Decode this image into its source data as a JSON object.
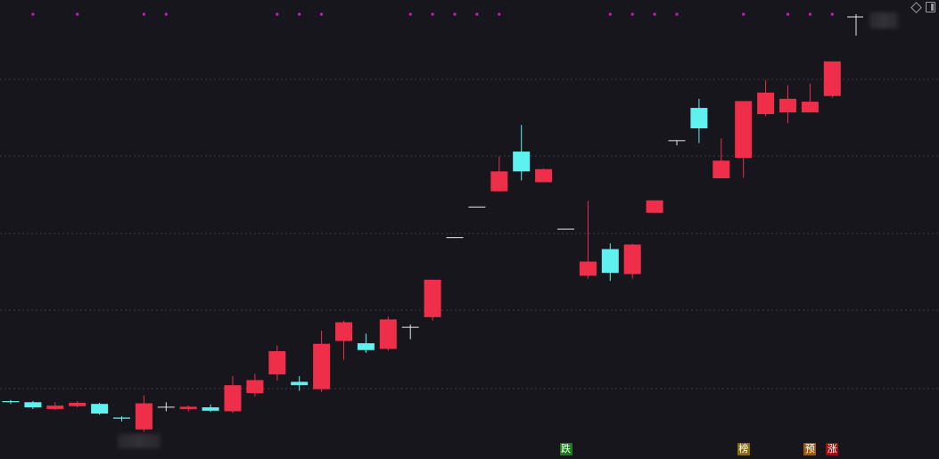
{
  "colors": {
    "background": "#17161d",
    "up": "#ef2f4a",
    "down": "#5ff0f0",
    "flat": "#e6e6e6",
    "grid": "#3a3a44",
    "dot": "#c020c0"
  },
  "markers": [
    {
      "label": "跌",
      "bg": "#1f7a1f",
      "fg": "#ffffff",
      "index": 25
    },
    {
      "label": "榜",
      "bg": "#8a6a10",
      "fg": "#ffffff",
      "index": 33
    },
    {
      "label": "预",
      "bg": "#a05a10",
      "fg": "#ffffff",
      "index": 36
    },
    {
      "label": "涨",
      "bg": "#9a1010",
      "fg": "#ffffff",
      "index": 37
    }
  ],
  "chart_data": {
    "type": "candlestick",
    "grid": true,
    "top_dots_at_indices": [
      1,
      3,
      6,
      7,
      12,
      13,
      14,
      18,
      19,
      20,
      21,
      22,
      27,
      28,
      29,
      30,
      33,
      35,
      36,
      37
    ],
    "candles": [
      {
        "o": 58.0,
        "h": 58.2,
        "l": 57.5,
        "c": 57.8
      },
      {
        "o": 57.8,
        "h": 58.0,
        "l": 56.6,
        "c": 56.9
      },
      {
        "o": 56.6,
        "h": 57.8,
        "l": 56.4,
        "c": 57.2
      },
      {
        "o": 57.1,
        "h": 58.0,
        "l": 56.9,
        "c": 57.7
      },
      {
        "o": 57.5,
        "h": 57.7,
        "l": 55.6,
        "c": 55.8
      },
      {
        "o": 55.1,
        "h": 55.3,
        "l": 54.4,
        "c": 54.9
      },
      {
        "o": 53.0,
        "h": 59.0,
        "l": 52.6,
        "c": 57.6
      },
      {
        "o": 57.0,
        "h": 57.8,
        "l": 56.2,
        "c": 57.0
      },
      {
        "o": 56.6,
        "h": 57.2,
        "l": 56.2,
        "c": 57.0
      },
      {
        "o": 56.9,
        "h": 57.4,
        "l": 56.1,
        "c": 56.3
      },
      {
        "o": 56.2,
        "h": 62.4,
        "l": 55.9,
        "c": 60.8
      },
      {
        "o": 59.4,
        "h": 62.8,
        "l": 58.8,
        "c": 61.7
      },
      {
        "o": 62.7,
        "h": 67.8,
        "l": 61.6,
        "c": 66.8
      },
      {
        "o": 61.4,
        "h": 62.4,
        "l": 59.8,
        "c": 60.8
      },
      {
        "o": 60.1,
        "h": 70.4,
        "l": 59.6,
        "c": 68.1
      },
      {
        "o": 68.6,
        "h": 72.2,
        "l": 65.3,
        "c": 71.9
      },
      {
        "o": 68.2,
        "h": 69.9,
        "l": 66.5,
        "c": 67.0
      },
      {
        "o": 67.2,
        "h": 72.9,
        "l": 66.9,
        "c": 72.4
      },
      {
        "o": 71.1,
        "h": 71.5,
        "l": 68.9,
        "c": 71.1
      },
      {
        "o": 72.8,
        "h": 79.4,
        "l": 72.2,
        "c": 79.4
      },
      {
        "o": 86.9,
        "h": 86.9,
        "l": 86.9,
        "c": 86.9
      },
      {
        "o": 92.3,
        "h": 92.3,
        "l": 92.3,
        "c": 92.3
      },
      {
        "o": 95.0,
        "h": 101.1,
        "l": 94.9,
        "c": 98.5
      },
      {
        "o": 102.0,
        "h": 106.7,
        "l": 96.9,
        "c": 98.5
      },
      {
        "o": 96.6,
        "h": 99.0,
        "l": 96.6,
        "c": 98.9
      },
      {
        "o": 88.4,
        "h": 88.4,
        "l": 88.4,
        "c": 88.4
      },
      {
        "o": 80.1,
        "h": 93.3,
        "l": 79.6,
        "c": 82.6
      },
      {
        "o": 84.8,
        "h": 85.8,
        "l": 79.2,
        "c": 80.6
      },
      {
        "o": 80.4,
        "h": 85.7,
        "l": 79.6,
        "c": 85.6
      },
      {
        "o": 91.2,
        "h": 93.4,
        "l": 91.2,
        "c": 93.4
      },
      {
        "o": 104.0,
        "h": 104.0,
        "l": 103.1,
        "c": 104.0
      },
      {
        "o": 109.7,
        "h": 111.3,
        "l": 103.5,
        "c": 106.1
      },
      {
        "o": 97.3,
        "h": 104.3,
        "l": 97.3,
        "c": 100.4
      },
      {
        "o": 100.9,
        "h": 110.9,
        "l": 97.4,
        "c": 110.9
      },
      {
        "o": 108.6,
        "h": 114.6,
        "l": 108.2,
        "c": 112.4
      },
      {
        "o": 108.9,
        "h": 113.7,
        "l": 107.0,
        "c": 111.3
      },
      {
        "o": 108.9,
        "h": 114.0,
        "l": 108.9,
        "c": 110.8
      },
      {
        "o": 111.8,
        "h": 117.9,
        "l": 111.5,
        "c": 117.9
      }
    ]
  }
}
